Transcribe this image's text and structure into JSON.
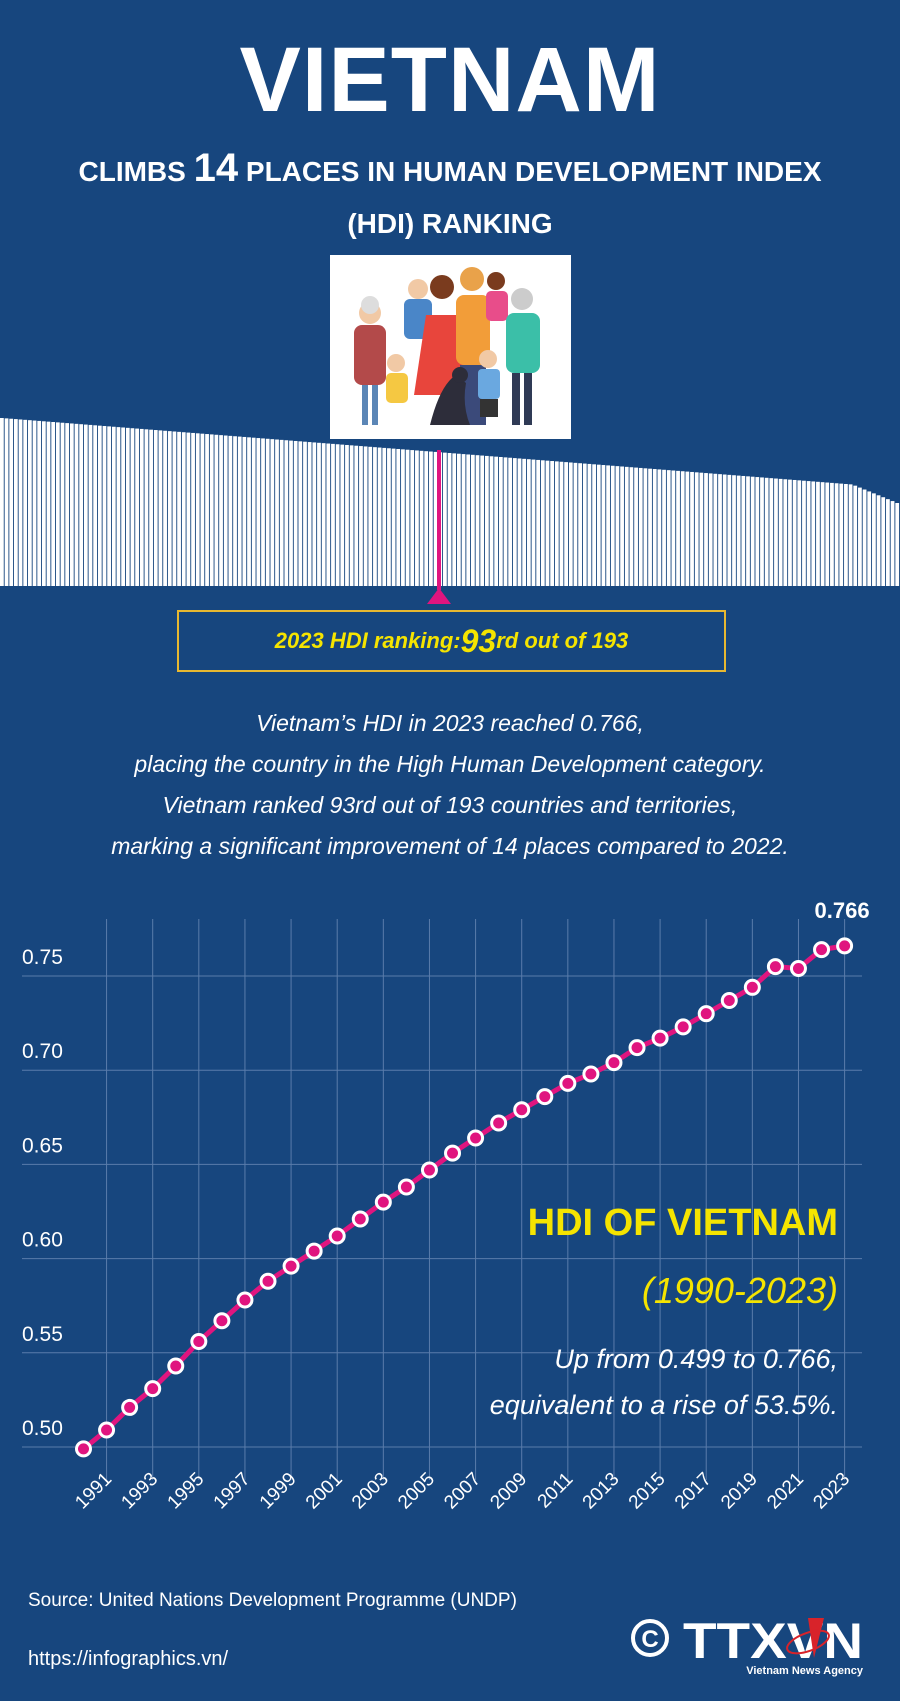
{
  "header": {
    "title": "VIETNAM",
    "subtitle_pre": "CLIMBS ",
    "subtitle_num": "14",
    "subtitle_post": " PLACES IN HUMAN DEVELOPMENT INDEX",
    "subtitle_line2": "(HDI) RANKING"
  },
  "ranking": {
    "label_pre": "2023 HDI ranking: ",
    "rank": "93",
    "label_post": "rd out of 193",
    "total_countries": 193,
    "highlight_rank": 93,
    "colors": {
      "bars": "#ffffff",
      "marker": "#e0157f",
      "box_border": "#e8b830",
      "text": "#f5e400"
    }
  },
  "description": [
    "Vietnam’s HDI in 2023 reached 0.766,",
    "placing the country in the High Human Development category.",
    "Vietnam ranked 93rd out of 193 countries and territories,",
    "marking a significant improvement of 14 places compared to 2022."
  ],
  "chart_data": {
    "type": "line",
    "title": "HDI OF VIETNAM",
    "subtitle": "(1990-2023)",
    "notes": [
      "Up from 0.499 to 0.766,",
      "equivalent to a rise of 53.5%."
    ],
    "x": [
      1990,
      1991,
      1992,
      1993,
      1994,
      1995,
      1996,
      1997,
      1998,
      1999,
      2000,
      2001,
      2002,
      2003,
      2004,
      2005,
      2006,
      2007,
      2008,
      2009,
      2010,
      2011,
      2012,
      2013,
      2014,
      2015,
      2016,
      2017,
      2018,
      2019,
      2020,
      2021,
      2022,
      2023
    ],
    "values": [
      0.499,
      0.509,
      0.521,
      0.531,
      0.543,
      0.556,
      0.567,
      0.578,
      0.588,
      0.596,
      0.604,
      0.612,
      0.621,
      0.63,
      0.638,
      0.647,
      0.656,
      0.664,
      0.672,
      0.679,
      0.686,
      0.693,
      0.698,
      0.704,
      0.712,
      0.717,
      0.723,
      0.73,
      0.737,
      0.744,
      0.755,
      0.754,
      0.764,
      0.766
    ],
    "x_tick_labels": [
      "1991",
      "1993",
      "1995",
      "1997",
      "1999",
      "2001",
      "2003",
      "2005",
      "2007",
      "2009",
      "2011",
      "2013",
      "2015",
      "2017",
      "2019",
      "2021",
      "2023"
    ],
    "y_ticks": [
      0.5,
      0.55,
      0.6,
      0.65,
      0.7,
      0.75
    ],
    "y_tick_labels": [
      "0.50",
      "0.55",
      "0.60",
      "0.65",
      "0.70",
      "0.75"
    ],
    "ylim": [
      0.48,
      0.78
    ],
    "end_label": "0.766",
    "grid": true,
    "colors": {
      "line": "#e0157f",
      "marker_fill": "#e0157f",
      "marker_edge": "#ffffff",
      "grid": "#5a7cab",
      "title": "#f5e400"
    }
  },
  "footer": {
    "source": "Source: United Nations Development Programme (UNDP)",
    "url": "https://infographics.vn/",
    "logo_text": "TTXVN",
    "logo_sub": "Vietnam News Agency",
    "copyright": "©"
  }
}
